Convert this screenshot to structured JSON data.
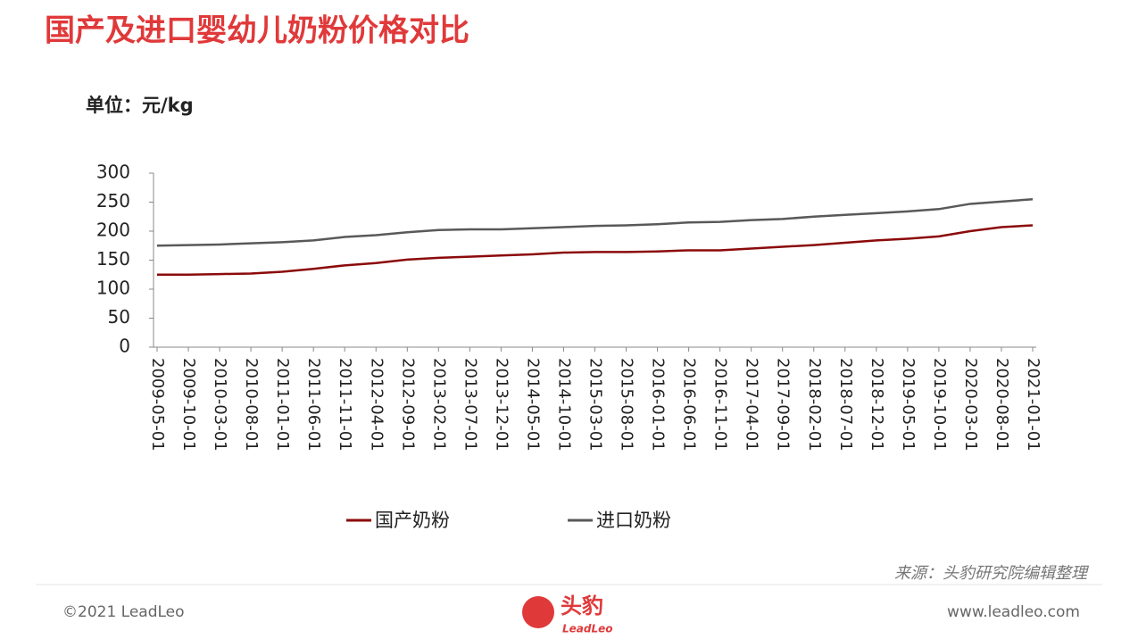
{
  "chart_data": {
    "type": "line",
    "title": "国产及进口婴幼儿奶粉价格对比",
    "unit": "单位：元/kg",
    "categories": [
      "2009-05-01",
      "2009-10-01",
      "2010-03-01",
      "2010-08-01",
      "2011-01-01",
      "2011-06-01",
      "2011-11-01",
      "2012-04-01",
      "2012-09-01",
      "2013-02-01",
      "2013-07-01",
      "2013-12-01",
      "2014-05-01",
      "2014-10-01",
      "2015-03-01",
      "2015-08-01",
      "2016-01-01",
      "2016-06-01",
      "2016-11-01",
      "2017-04-01",
      "2017-09-01",
      "2018-02-01",
      "2018-07-01",
      "2018-12-01",
      "2019-05-01",
      "2019-10-01",
      "2020-03-01",
      "2020-08-01",
      "2021-01-01"
    ],
    "series": [
      {
        "name": "国产奶粉",
        "color": "#8b0a0a",
        "values": [
          125,
          125,
          126,
          127,
          130,
          135,
          141,
          145,
          151,
          154,
          156,
          158,
          160,
          163,
          164,
          164,
          165,
          167,
          167,
          170,
          173,
          176,
          180,
          184,
          187,
          191,
          200,
          207,
          210
        ]
      },
      {
        "name": "进口奶粉",
        "color": "#595959",
        "values": [
          175,
          176,
          177,
          179,
          181,
          184,
          190,
          193,
          198,
          202,
          203,
          203,
          205,
          207,
          209,
          210,
          212,
          215,
          216,
          219,
          221,
          225,
          228,
          231,
          234,
          238,
          247,
          251,
          255
        ]
      }
    ],
    "ylim": [
      0,
      300
    ],
    "yticks": [
      0,
      50,
      100,
      150,
      200,
      250,
      300
    ]
  },
  "source": "来源：头豹研究院编辑整理",
  "footer": {
    "copyright": "©2021 LeadLeo",
    "logo": "头豹",
    "logo_sub": "LeadLeo",
    "website": "www.leadleo.com"
  }
}
